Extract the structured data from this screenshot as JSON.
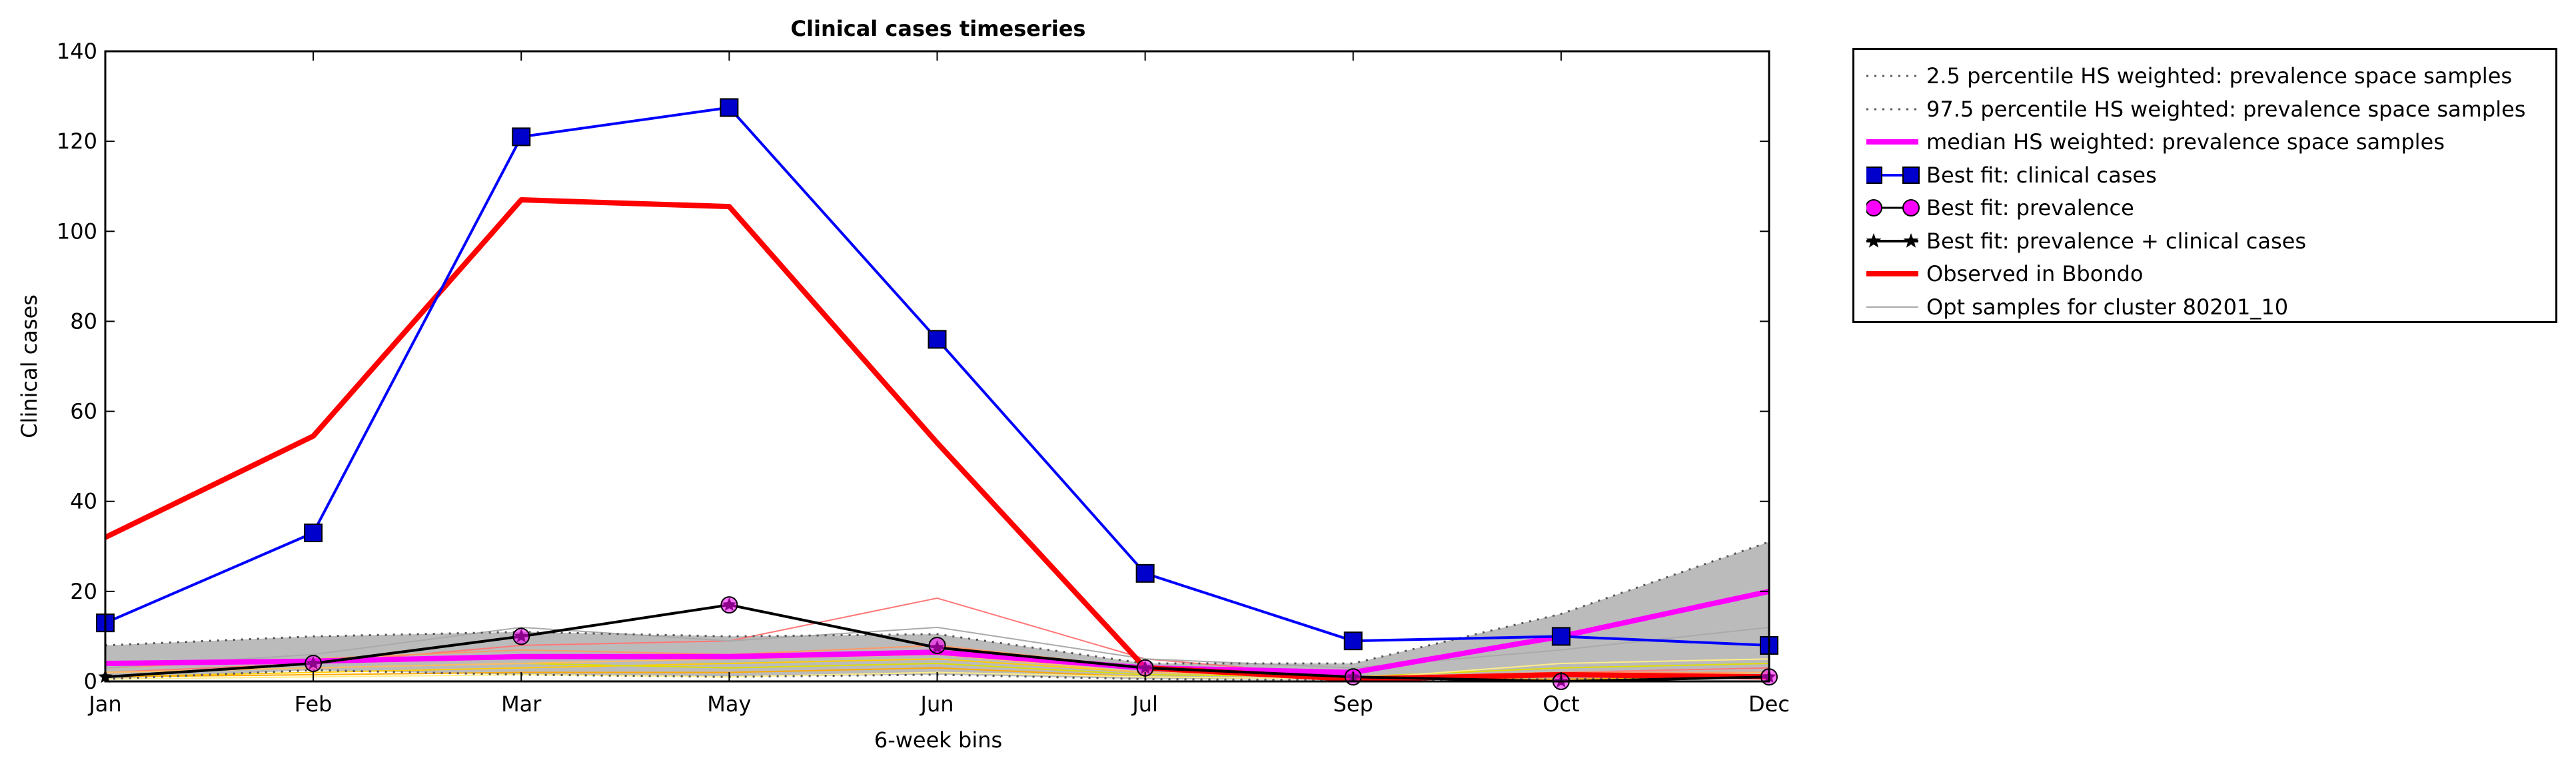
{
  "chart_data": {
    "type": "line",
    "title": "Clinical cases timeseries",
    "xlabel": "6-week bins",
    "ylabel": "Clinical cases",
    "categories": [
      "Jan",
      "Feb",
      "Mar",
      "May",
      "Jun",
      "Jul",
      "Sep",
      "Oct",
      "Dec"
    ],
    "ylim": [
      0,
      140
    ],
    "yticks": [
      "0",
      "20",
      "40",
      "60",
      "80",
      "100",
      "120",
      "140"
    ],
    "grid": false,
    "legend_position": "outside-right-top",
    "series": [
      {
        "name": "2.5 percentile HS weighted: prevalence space samples",
        "color": "#555555",
        "style": "dotted",
        "values": [
          0.5,
          2.5,
          1.5,
          1.0,
          1.5,
          0.5,
          0.3,
          0.5,
          0.8
        ]
      },
      {
        "name": "97.5 percentile HS weighted: prevalence space samples",
        "color": "#555555",
        "style": "dotted",
        "values": [
          8,
          10,
          11,
          10,
          10.5,
          4,
          4,
          15,
          31
        ]
      },
      {
        "name": "median HS weighted: prevalence space samples",
        "color": "#ff00ff",
        "style": "solid-thick",
        "values": [
          4,
          4.5,
          5.5,
          5.5,
          6.5,
          3,
          2,
          10,
          20
        ]
      },
      {
        "name": "Best fit: clinical cases",
        "color": "#0000ff",
        "marker": "square",
        "values": [
          13,
          33,
          121,
          127.5,
          76,
          24,
          9,
          10,
          8
        ]
      },
      {
        "name": "Best fit: prevalence",
        "color": "#ff00ff",
        "marker": "circle",
        "values": [
          null,
          4,
          10,
          17,
          8,
          3,
          1,
          0,
          1
        ]
      },
      {
        "name": "Best fit: prevalence + clinical cases",
        "color": "#000000",
        "marker": "star",
        "values": [
          1,
          4,
          10,
          17,
          7.5,
          3,
          1,
          0,
          1
        ]
      },
      {
        "name": "Observed in Bbondo",
        "color": "#ff0000",
        "style": "solid-thick",
        "values": [
          32,
          54.5,
          107,
          105.5,
          53,
          3,
          0.5,
          1.5,
          1
        ]
      },
      {
        "name": "Opt samples for cluster 80201_10",
        "color": "#aaaaaa",
        "style": "thin",
        "values": [
          3,
          6,
          12,
          9,
          12,
          5,
          3,
          7,
          12
        ]
      }
    ],
    "extra_sample_lines": [
      {
        "color": "#ff7777",
        "values": [
          2,
          4,
          8,
          9,
          18.5,
          5,
          1,
          2,
          3
        ]
      },
      {
        "color": "#ffcc00",
        "values": [
          1,
          2,
          3,
          4,
          5,
          2,
          1,
          1,
          2
        ]
      },
      {
        "color": "#ffaa00",
        "values": [
          1,
          1.5,
          2,
          2,
          3,
          1,
          0.5,
          0.5,
          1
        ]
      },
      {
        "color": "#dddd00",
        "values": [
          2,
          3,
          4,
          3,
          4,
          1.5,
          1,
          3,
          4
        ]
      },
      {
        "color": "#ffee88",
        "values": [
          0.5,
          1,
          1.5,
          1,
          2,
          1,
          0.5,
          4,
          5
        ]
      },
      {
        "color": "#ff9966",
        "values": [
          3,
          5,
          7,
          6,
          8,
          3,
          1,
          2,
          2
        ]
      },
      {
        "color": "#ffbb66",
        "values": [
          2,
          3,
          4,
          5,
          6,
          2,
          1,
          1,
          2
        ]
      }
    ],
    "band_fill": "#bbbbbb"
  }
}
